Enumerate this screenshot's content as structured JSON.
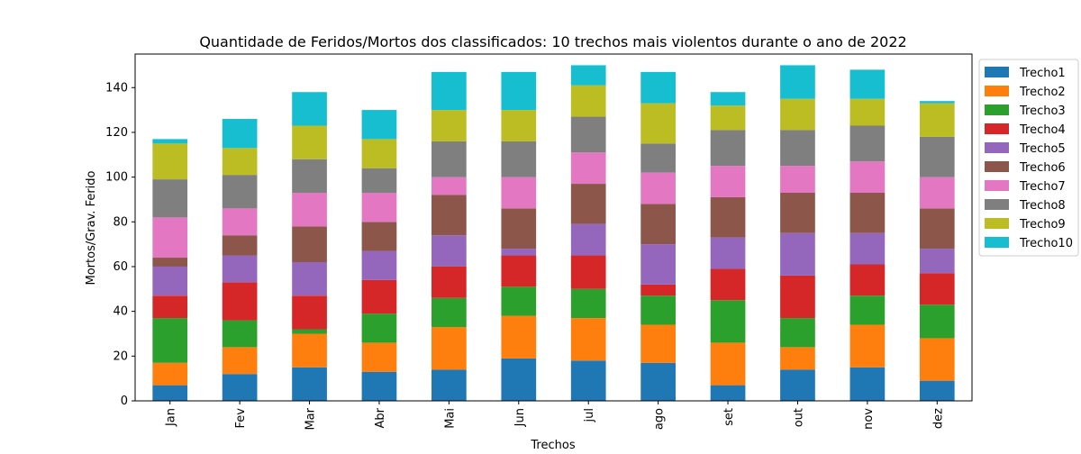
{
  "chart_data": {
    "type": "bar",
    "stacked": true,
    "title": "Quantidade de Feridos/Mortos dos classificados: 10 trechos mais violentos durante o ano de 2022",
    "xlabel": "Trechos",
    "ylabel": "Mortos/Grav. Ferido",
    "ylim": [
      0,
      155
    ],
    "yticks": [
      0,
      20,
      40,
      60,
      80,
      100,
      120,
      140
    ],
    "grid": false,
    "legend_position": "right",
    "categories": [
      "Jan",
      "Fev",
      "Mar",
      "Abr",
      "Mai",
      "Jun",
      "jul",
      "ago",
      "set",
      "out",
      "nov",
      "dez"
    ],
    "series": [
      {
        "name": "Trecho1",
        "color": "#1f77b4",
        "values": [
          7,
          12,
          15,
          13,
          14,
          19,
          18,
          17,
          7,
          14,
          15,
          9
        ]
      },
      {
        "name": "Trecho2",
        "color": "#ff7f0e",
        "values": [
          10,
          12,
          15,
          13,
          19,
          19,
          19,
          17,
          19,
          10,
          19,
          19
        ]
      },
      {
        "name": "Trecho3",
        "color": "#2ca02c",
        "values": [
          20,
          12,
          2,
          13,
          13,
          13,
          13,
          13,
          19,
          13,
          13,
          15
        ]
      },
      {
        "name": "Trecho4",
        "color": "#d62728",
        "values": [
          10,
          17,
          15,
          15,
          14,
          14,
          15,
          5,
          14,
          19,
          14,
          14
        ]
      },
      {
        "name": "Trecho5",
        "color": "#9467bd",
        "values": [
          13,
          12,
          15,
          13,
          14,
          3,
          14,
          18,
          14,
          19,
          14,
          11
        ]
      },
      {
        "name": "Trecho6",
        "color": "#8c564b",
        "values": [
          4,
          9,
          16,
          13,
          18,
          18,
          18,
          18,
          18,
          18,
          18,
          18
        ]
      },
      {
        "name": "Trecho7",
        "color": "#e377c2",
        "values": [
          18,
          12,
          15,
          13,
          8,
          14,
          14,
          14,
          14,
          12,
          14,
          14
        ]
      },
      {
        "name": "Trecho8",
        "color": "#7f7f7f",
        "values": [
          17,
          15,
          15,
          11,
          16,
          16,
          16,
          13,
          16,
          16,
          16,
          18
        ]
      },
      {
        "name": "Trecho9",
        "color": "#bcbd22",
        "values": [
          16,
          12,
          15,
          13,
          14,
          14,
          14,
          18,
          11,
          14,
          12,
          15
        ]
      },
      {
        "name": "Trecho10",
        "color": "#17becf",
        "values": [
          2,
          13,
          15,
          13,
          17,
          17,
          9,
          14,
          6,
          15,
          13,
          1
        ]
      }
    ]
  }
}
